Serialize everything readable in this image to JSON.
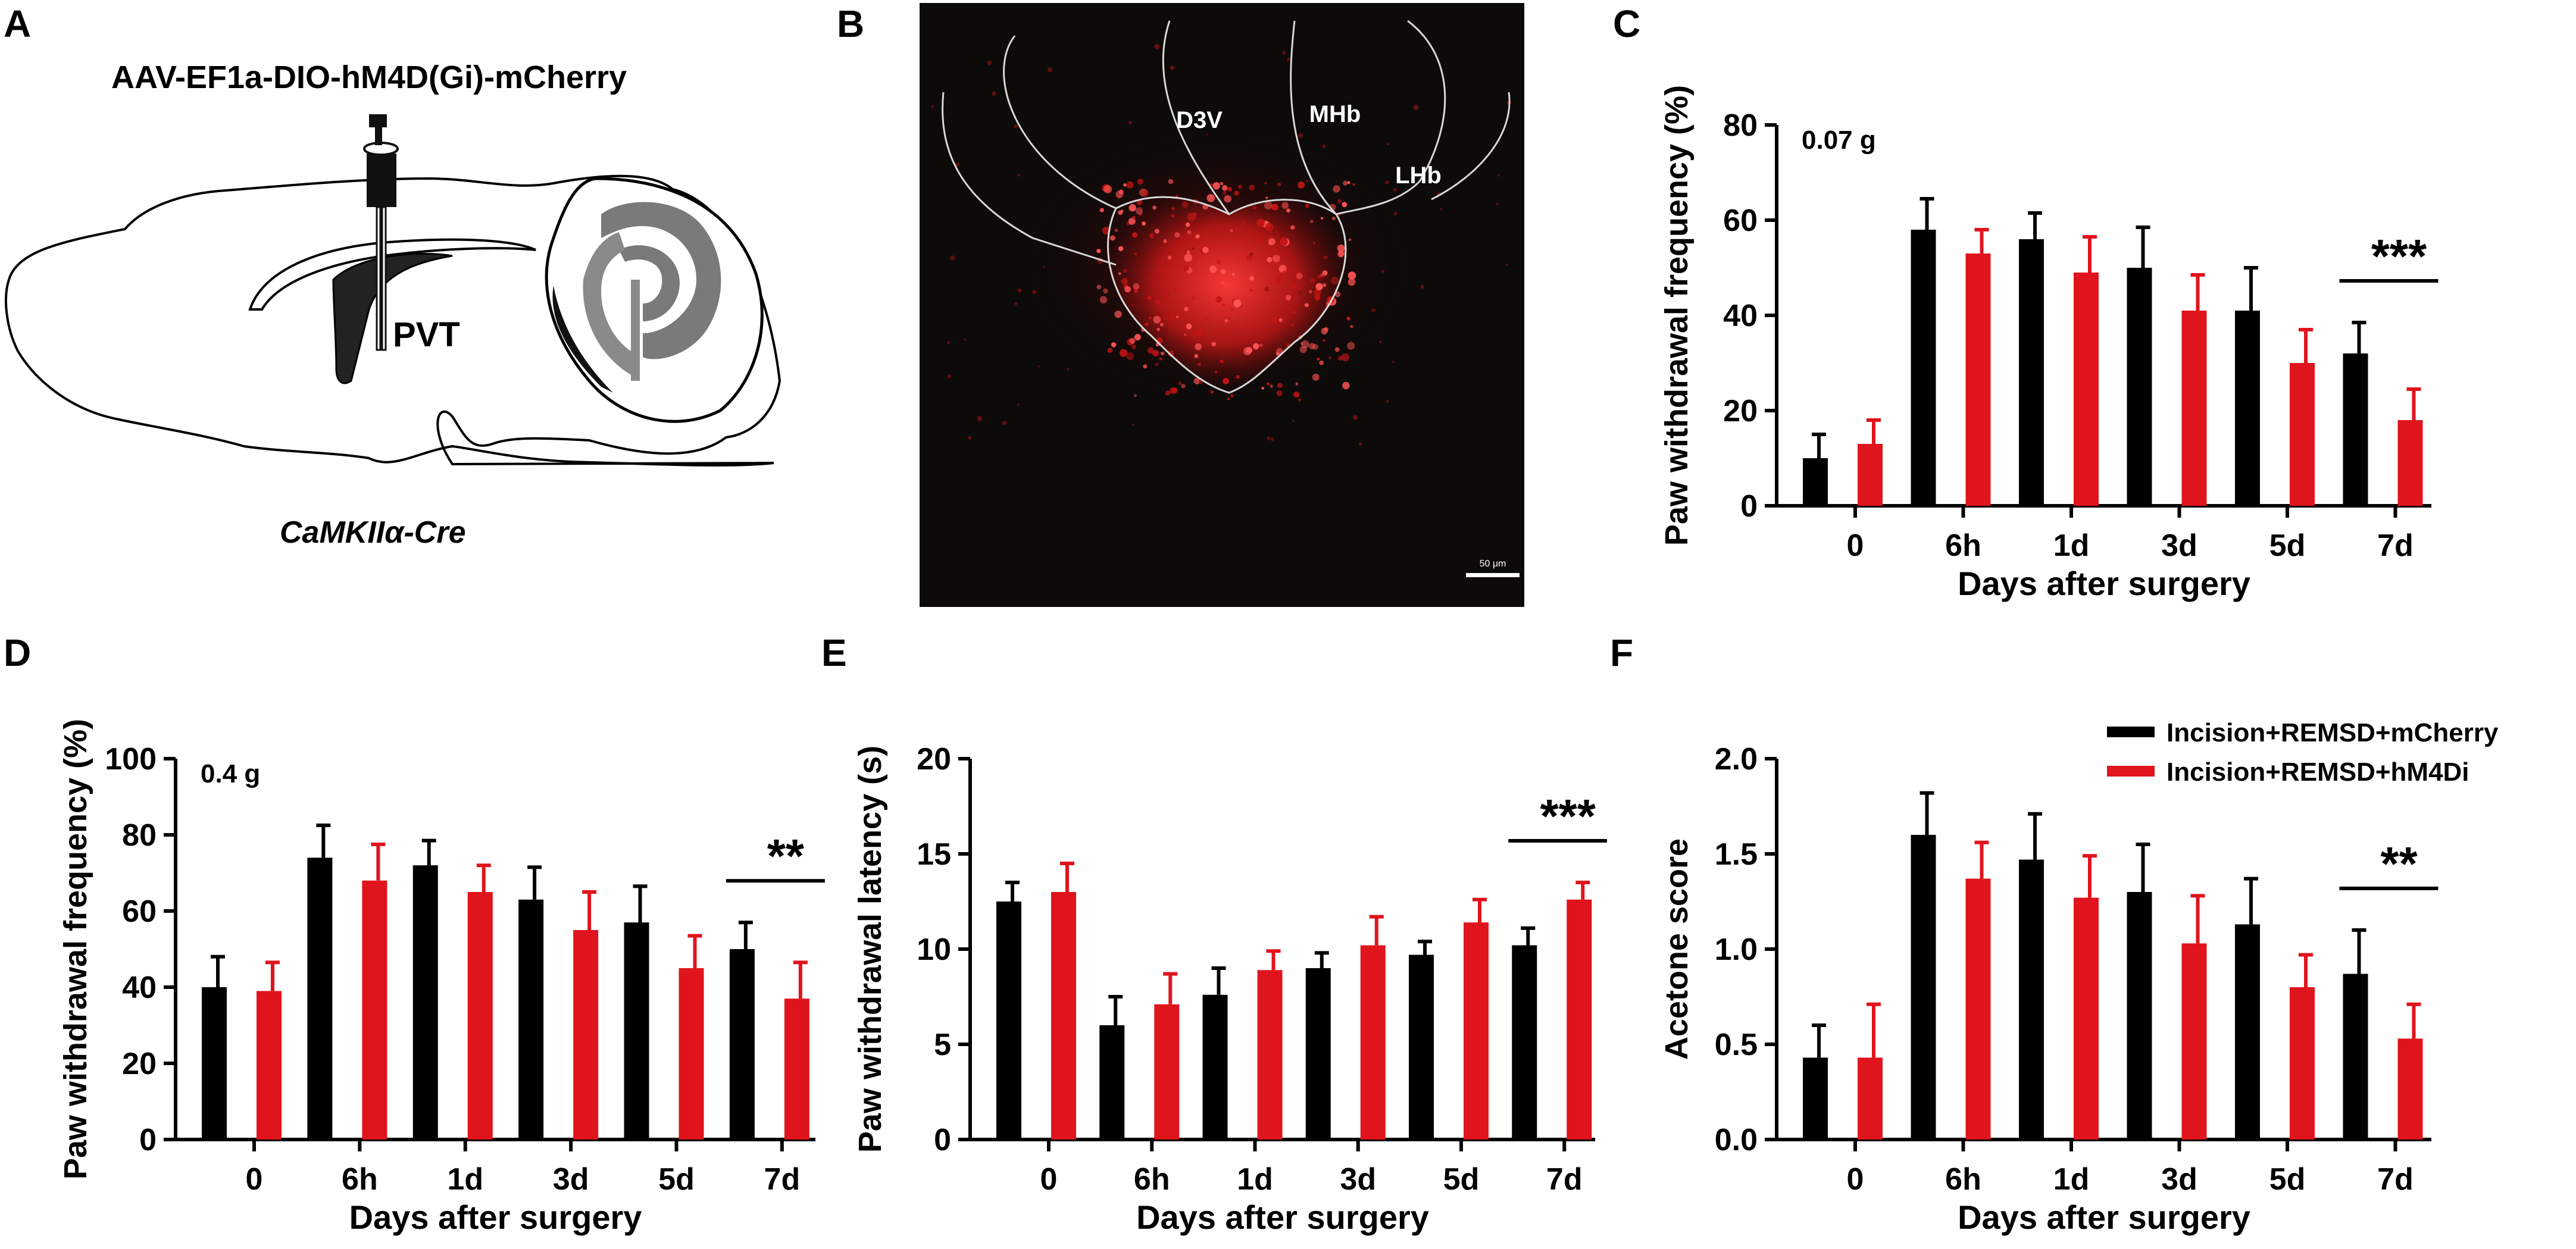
{
  "panel_labels": {
    "A": "A",
    "B": "B",
    "C": "C",
    "D": "D",
    "E": "E",
    "F": "F"
  },
  "schematic": {
    "virus": "AAV-EF1a-DIO-hM4D(Gi)-mCherry",
    "region": "PVT",
    "mouse_line": "CaMKIIα-Cre"
  },
  "micrograph": {
    "regions": [
      "D3V",
      "MHb",
      "LHb"
    ],
    "scale_bar": "50 μm"
  },
  "colors": {
    "mcherry": "#000000",
    "hm4di": "#e0141c",
    "signal": "#e8202a"
  },
  "legend": [
    "Incision+REMSD+mCherry",
    "Incision+REMSD+hM4Di"
  ],
  "chart_data": [
    {
      "id": "C",
      "type": "bar",
      "title": "",
      "annotation": "0.07 g",
      "xlabel": "Days after surgery",
      "ylabel": "Paw withdrawal frequency (%)",
      "categories": [
        "0",
        "6h",
        "1d",
        "3d",
        "5d",
        "7d"
      ],
      "ylim": [
        0,
        80
      ],
      "yticks": [
        "0",
        "20",
        "40",
        "60",
        "80"
      ],
      "series": [
        {
          "name": "Incision+REMSD+mCherry",
          "values": [
            10,
            58,
            56,
            50,
            41,
            32
          ],
          "errors": [
            5,
            6.5,
            5.5,
            8.5,
            9,
            6.5
          ]
        },
        {
          "name": "Incision+REMSD+hM4Di",
          "values": [
            13,
            53,
            49,
            41,
            30,
            18
          ],
          "errors": [
            5,
            5,
            7.5,
            7.5,
            7,
            6.5
          ]
        }
      ],
      "significance": {
        "label": "***",
        "category": "7d"
      }
    },
    {
      "id": "D",
      "type": "bar",
      "title": "",
      "annotation": "0.4 g",
      "xlabel": "Days after surgery",
      "ylabel": "Paw withdrawal frequency (%)",
      "categories": [
        "0",
        "6h",
        "1d",
        "3d",
        "5d",
        "7d"
      ],
      "ylim": [
        0,
        100
      ],
      "yticks": [
        "0",
        "20",
        "40",
        "60",
        "80",
        "100"
      ],
      "series": [
        {
          "name": "Incision+REMSD+mCherry",
          "values": [
            40,
            74,
            72,
            63,
            57,
            50
          ],
          "errors": [
            8,
            8.5,
            6.5,
            8.5,
            9.5,
            7
          ]
        },
        {
          "name": "Incision+REMSD+hM4Di",
          "values": [
            39,
            68,
            65,
            55,
            45,
            37
          ],
          "errors": [
            7.5,
            9.5,
            7,
            10,
            8.5,
            9.5
          ]
        }
      ],
      "significance": {
        "label": "**",
        "category": "7d"
      }
    },
    {
      "id": "E",
      "type": "bar",
      "title": "",
      "annotation": "",
      "xlabel": "Days after surgery",
      "ylabel": "Paw withdrawal latency (s)",
      "categories": [
        "0",
        "6h",
        "1d",
        "3d",
        "5d",
        "7d"
      ],
      "ylim": [
        0,
        20
      ],
      "yticks": [
        "0",
        "5",
        "10",
        "15",
        "20"
      ],
      "series": [
        {
          "name": "Incision+REMSD+mCherry",
          "values": [
            12.5,
            6.0,
            7.6,
            9.0,
            9.7,
            10.2
          ],
          "errors": [
            1.0,
            1.5,
            1.4,
            0.8,
            0.7,
            0.9
          ]
        },
        {
          "name": "Incision+REMSD+hM4Di",
          "values": [
            13.0,
            7.1,
            8.9,
            10.2,
            11.4,
            12.6
          ],
          "errors": [
            1.5,
            1.6,
            1.0,
            1.5,
            1.2,
            0.9
          ]
        }
      ],
      "significance": {
        "label": "***",
        "category": "7d"
      }
    },
    {
      "id": "F",
      "type": "bar",
      "title": "",
      "annotation": "",
      "xlabel": "Days after surgery",
      "ylabel": "Acetone score",
      "categories": [
        "0",
        "6h",
        "1d",
        "3d",
        "5d",
        "7d"
      ],
      "ylim": [
        0,
        2.0
      ],
      "yticks": [
        "0.0",
        "0.5",
        "1.0",
        "1.5",
        "2.0"
      ],
      "series": [
        {
          "name": "Incision+REMSD+mCherry",
          "values": [
            0.43,
            1.6,
            1.47,
            1.3,
            1.13,
            0.87
          ],
          "errors": [
            0.17,
            0.22,
            0.24,
            0.25,
            0.24,
            0.23
          ]
        },
        {
          "name": "Incision+REMSD+hM4Di",
          "values": [
            0.43,
            1.37,
            1.27,
            1.03,
            0.8,
            0.53
          ],
          "errors": [
            0.28,
            0.19,
            0.22,
            0.25,
            0.17,
            0.18
          ]
        }
      ],
      "significance": {
        "label": "**",
        "category": "7d"
      }
    }
  ]
}
